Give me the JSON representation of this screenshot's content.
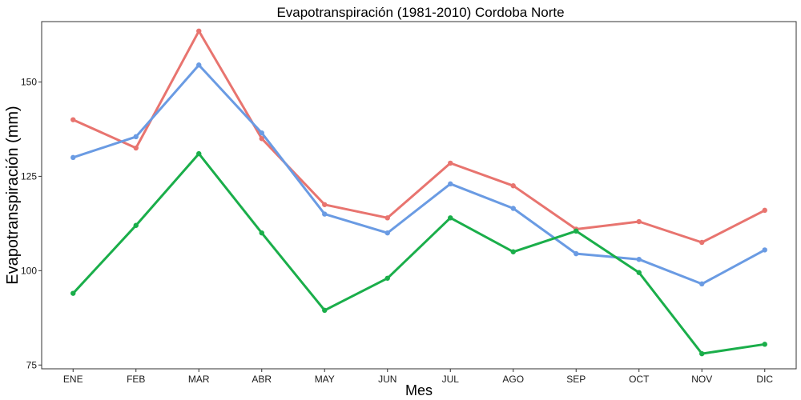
{
  "chart_data": {
    "type": "line",
    "title": "Evapotranspiración (1981-2010)  Cordoba Norte",
    "xlabel": "Mes",
    "ylabel": "Evapotranspiración (mm)",
    "categories": [
      "ENE",
      "FEB",
      "MAR",
      "ABR",
      "MAY",
      "JUN",
      "JUL",
      "AGO",
      "SEP",
      "OCT",
      "NOV",
      "DIC"
    ],
    "ylim": [
      74,
      166
    ],
    "yticks": [
      75,
      100,
      125,
      150
    ],
    "ytick_labels": [
      "75",
      "100",
      "125",
      "150"
    ],
    "grid": false,
    "legend": "none",
    "series": [
      {
        "color": "#E8746F",
        "values": [
          140,
          132.5,
          163.5,
          135,
          117.5,
          114,
          128.5,
          122.5,
          111,
          113,
          107.5,
          116
        ]
      },
      {
        "color": "#6A9BE3",
        "values": [
          130,
          135.5,
          154.5,
          136.5,
          115,
          110,
          123,
          116.5,
          104.5,
          103,
          96.5,
          105.5
        ]
      },
      {
        "color": "#1AAE4A",
        "values": [
          94,
          112,
          131,
          110,
          89.5,
          98,
          114,
          105,
          110.5,
          99.5,
          78,
          80.5
        ]
      }
    ]
  }
}
